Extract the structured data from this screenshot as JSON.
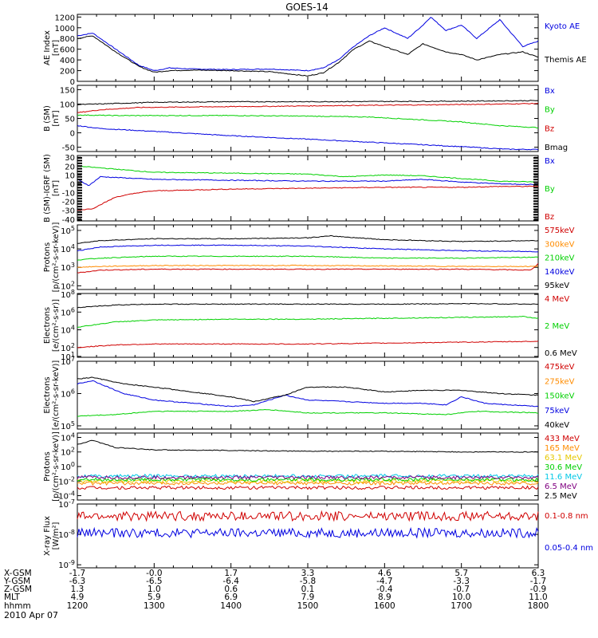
{
  "title": "GOES-14",
  "colors": {
    "black": "#000000",
    "red": "#d00000",
    "green": "#00d000",
    "blue": "#0000e0",
    "orange": "#ff8c00",
    "yellow": "#e6c800",
    "cyan": "#00c8e6",
    "purple": "#800080"
  },
  "footer": {
    "rows": [
      {
        "label": "X-GSM",
        "values": [
          "-1.7",
          "-0.0",
          "1.7",
          "3.3",
          "4.6",
          "5.7",
          "6.3"
        ]
      },
      {
        "label": "Y-GSM",
        "values": [
          "-6.3",
          "-6.5",
          "-6.4",
          "-5.8",
          "-4.7",
          "-3.3",
          "-1.7"
        ]
      },
      {
        "label": "Z-GSM",
        "values": [
          "1.3",
          "1.0",
          "0.6",
          "0.1",
          "-0.4",
          "-0.7",
          "-0.9"
        ]
      },
      {
        "label": "MLT",
        "values": [
          "4.9",
          "5.9",
          "6.9",
          "7.9",
          "8.9",
          "10.0",
          "11.0"
        ]
      },
      {
        "label": "hhmm",
        "values": [
          "1200",
          "1300",
          "1400",
          "1500",
          "1600",
          "1700",
          "1800"
        ]
      }
    ],
    "date": "2010 Apr 07"
  },
  "chart_data": [
    {
      "type": "line",
      "id": "ae",
      "ylabel": "AE Index\n[nT]",
      "yticks": [
        "1200",
        "1000",
        "800",
        "600",
        "400",
        "200",
        "0"
      ],
      "ylim": [
        0,
        1250
      ],
      "x_hours": [
        12.0,
        18.0
      ],
      "series": [
        {
          "name": "Kyoto AE",
          "color": "blue",
          "x": [
            12.0,
            12.2,
            12.5,
            12.8,
            13.0,
            13.2,
            13.5,
            14.0,
            14.5,
            15.0,
            15.2,
            15.4,
            15.6,
            15.8,
            16.0,
            16.3,
            16.5,
            16.6,
            16.8,
            17.0,
            17.2,
            17.5,
            17.8,
            18.0
          ],
          "y": [
            850,
            900,
            600,
            300,
            200,
            250,
            230,
            220,
            230,
            200,
            250,
            400,
            650,
            850,
            1000,
            800,
            1050,
            1200,
            950,
            1050,
            800,
            1150,
            650,
            750
          ]
        },
        {
          "name": "Themis AE",
          "color": "black",
          "x": [
            12.0,
            12.2,
            12.5,
            12.8,
            13.0,
            13.2,
            13.5,
            14.0,
            14.5,
            15.0,
            15.2,
            15.4,
            15.6,
            15.8,
            16.0,
            16.3,
            16.5,
            16.8,
            17.0,
            17.2,
            17.5,
            17.8,
            18.0
          ],
          "y": [
            800,
            850,
            550,
            280,
            170,
            200,
            210,
            200,
            180,
            100,
            160,
            350,
            600,
            750,
            650,
            500,
            700,
            550,
            500,
            400,
            500,
            550,
            450
          ]
        }
      ]
    },
    {
      "type": "line",
      "id": "bsm",
      "ylabel": "B (SM)\n[nT]",
      "yticks": [
        "150",
        "100",
        "50",
        "0",
        "-50"
      ],
      "ylim": [
        -65,
        165
      ],
      "series": [
        {
          "name": "Bx",
          "color": "blue",
          "x": [
            12.0,
            12.3,
            13.0,
            14.0,
            15.0,
            16.0,
            17.0,
            17.6,
            18.0
          ],
          "y": [
            25,
            15,
            5,
            -10,
            -22,
            -35,
            -48,
            -57,
            -58
          ]
        },
        {
          "name": "By",
          "color": "green",
          "x": [
            12.0,
            12.5,
            13.0,
            14.0,
            15.0,
            15.8,
            16.5,
            17.0,
            17.5,
            18.0
          ],
          "y": [
            62,
            60,
            60,
            60,
            58,
            55,
            45,
            38,
            25,
            18
          ]
        },
        {
          "name": "Bz",
          "color": "red",
          "x": [
            12.0,
            12.3,
            12.8,
            13.5,
            14.5,
            15.5,
            16.5,
            17.5,
            18.0
          ],
          "y": [
            70,
            80,
            88,
            90,
            92,
            95,
            97,
            100,
            102
          ]
        },
        {
          "name": "Bmag",
          "color": "black",
          "x": [
            12.0,
            12.5,
            13.0,
            14.0,
            15.0,
            16.0,
            17.0,
            18.0
          ],
          "y": [
            98,
            102,
            106,
            108,
            108,
            109,
            110,
            112
          ]
        }
      ]
    },
    {
      "type": "line",
      "id": "bigrf",
      "ylabel": "B (SM)-IGRF (SM)\n[nT]",
      "yticks": [
        "30",
        "20",
        "10",
        "0",
        "-10",
        "-20",
        "-30",
        "-40"
      ],
      "ylim": [
        -42,
        32
      ],
      "series": [
        {
          "name": "Bx",
          "color": "blue",
          "x": [
            12.0,
            12.15,
            12.3,
            13.0,
            14.0,
            15.0,
            16.0,
            16.5,
            17.0,
            17.5,
            18.0
          ],
          "y": [
            5,
            -2,
            8,
            5,
            4,
            3,
            3,
            5,
            2,
            0,
            -1
          ]
        },
        {
          "name": "By",
          "color": "green",
          "x": [
            12.0,
            12.3,
            13.0,
            14.0,
            15.0,
            15.5,
            16.0,
            16.5,
            17.0,
            17.5,
            18.0
          ],
          "y": [
            20,
            18,
            13,
            12,
            11,
            8,
            10,
            9,
            6,
            3,
            2
          ]
        },
        {
          "name": "Bz",
          "color": "red",
          "x": [
            12.0,
            12.2,
            12.5,
            12.8,
            13.0,
            13.5,
            14.0,
            15.0,
            16.0,
            17.0,
            17.5,
            18.0
          ],
          "y": [
            -30,
            -28,
            -15,
            -10,
            -8,
            -7,
            -6,
            -5,
            -4,
            -4,
            -3,
            -3
          ]
        }
      ]
    },
    {
      "type": "line",
      "id": "protons_low",
      "ylabel": "Protons\n[p/(cm²-s-sr-keV)]",
      "log": true,
      "yticks": [
        "10^5",
        "10^4",
        "10^3",
        "10^2"
      ],
      "ylim_log": [
        1.8,
        5.3
      ],
      "series": [
        {
          "name": "575keV",
          "color": "red",
          "x": [
            12.0,
            12.3,
            13.0,
            15.0,
            17.0,
            17.9,
            18.0
          ],
          "y_log": [
            2.7,
            2.85,
            2.9,
            2.9,
            2.9,
            2.85,
            3.2
          ]
        },
        {
          "name": "300keV",
          "color": "orange",
          "x": [
            12.0,
            12.3,
            13.0,
            15.0,
            17.0,
            18.0
          ],
          "y_log": [
            3.0,
            3.05,
            3.1,
            3.1,
            3.05,
            3.05
          ]
        },
        {
          "name": "210keV",
          "color": "green",
          "x": [
            12.0,
            12.3,
            13.0,
            14.0,
            15.0,
            16.0,
            17.0,
            18.0
          ],
          "y_log": [
            3.4,
            3.5,
            3.6,
            3.6,
            3.6,
            3.5,
            3.5,
            3.55
          ]
        },
        {
          "name": "140keV",
          "color": "blue",
          "x": [
            12.0,
            12.3,
            13.0,
            14.0,
            15.0,
            16.0,
            17.0,
            18.0
          ],
          "y_log": [
            3.9,
            4.1,
            4.2,
            4.2,
            4.15,
            4.0,
            3.9,
            3.85
          ]
        },
        {
          "name": "95keV",
          "color": "black",
          "x": [
            12.0,
            12.3,
            13.0,
            14.0,
            15.0,
            15.3,
            16.0,
            17.0,
            18.0
          ],
          "y_log": [
            4.3,
            4.45,
            4.55,
            4.55,
            4.6,
            4.7,
            4.5,
            4.4,
            4.45
          ]
        }
      ]
    },
    {
      "type": "line",
      "id": "electrons_mev",
      "ylabel": "Electrons\n[e/(cm²-s-sr)]",
      "log": true,
      "yticks": [
        "10^8",
        "10^6",
        "10^4",
        "10^2",
        "10^1"
      ],
      "ylim_log": [
        0.9,
        8.1
      ],
      "series": [
        {
          "name": "4 MeV",
          "color": "red",
          "x": [
            12.0,
            12.5,
            13.0,
            14.0,
            15.0,
            16.0,
            17.0,
            18.0
          ],
          "y_log": [
            2.0,
            2.3,
            2.4,
            2.4,
            2.4,
            2.5,
            2.6,
            2.7
          ]
        },
        {
          "name": "2 MeV",
          "color": "green",
          "x": [
            12.0,
            12.5,
            13.0,
            14.0,
            15.0,
            16.0,
            17.0,
            17.8,
            18.0
          ],
          "y_log": [
            4.3,
            4.9,
            5.1,
            5.2,
            5.2,
            5.3,
            5.4,
            5.5,
            5.3
          ]
        },
        {
          "name": "0.6 MeV",
          "color": "black",
          "x": [
            12.0,
            12.5,
            13.0,
            14.0,
            15.0,
            16.0,
            17.0,
            18.0
          ],
          "y_log": [
            6.5,
            6.8,
            6.9,
            6.9,
            6.9,
            6.9,
            6.95,
            6.9
          ]
        }
      ]
    },
    {
      "type": "line",
      "id": "electrons_kev",
      "ylabel": "Electrons\n[e/(cm²-s-sr-keV)]",
      "log": true,
      "yticks": [
        "10^7",
        "10^6",
        "10^5"
      ],
      "ylim_log": [
        4.9,
        7.0
      ],
      "series": [
        {
          "name": "475keV",
          "color": "red",
          "x": [],
          "y_log": []
        },
        {
          "name": "275keV",
          "color": "orange",
          "x": [],
          "y_log": []
        },
        {
          "name": "150keV",
          "color": "green",
          "x": [
            12.0,
            12.5,
            13.0,
            14.0,
            14.5,
            15.0,
            16.0,
            16.8,
            17.2,
            18.0
          ],
          "y_log": [
            5.3,
            5.35,
            5.45,
            5.45,
            5.5,
            5.4,
            5.4,
            5.35,
            5.45,
            5.4
          ]
        },
        {
          "name": "75keV",
          "color": "blue",
          "x": [
            12.0,
            12.2,
            12.6,
            13.0,
            13.5,
            14.0,
            14.3,
            14.7,
            15.0,
            15.5,
            16.0,
            16.5,
            16.8,
            17.0,
            17.3,
            17.6,
            18.0
          ],
          "y_log": [
            6.3,
            6.4,
            6.0,
            5.8,
            5.7,
            5.6,
            5.65,
            5.95,
            5.8,
            5.75,
            5.7,
            5.7,
            5.65,
            5.9,
            5.7,
            5.65,
            5.6
          ]
        },
        {
          "name": "40keV",
          "color": "black",
          "x": [
            12.0,
            12.2,
            12.6,
            13.0,
            13.5,
            14.0,
            14.3,
            14.7,
            15.0,
            15.5,
            16.0,
            16.5,
            17.0,
            17.5,
            18.0
          ],
          "y_log": [
            6.45,
            6.5,
            6.3,
            6.2,
            6.05,
            5.9,
            5.75,
            5.95,
            6.2,
            6.2,
            6.05,
            6.1,
            6.1,
            6.0,
            5.95
          ]
        }
      ]
    },
    {
      "type": "line",
      "id": "protons_high",
      "ylabel": "Protons\n[p/(cm²-s-sr-keV)]",
      "log": true,
      "yticks": [
        "10^4",
        "10^2",
        "10^0",
        "10^-2",
        "10^-4"
      ],
      "ylim_log": [
        -4.6,
        4.6
      ],
      "series": [
        {
          "name": "433 MeV",
          "color": "red",
          "level": -2.9
        },
        {
          "name": "165 MeV",
          "color": "orange",
          "level": -2.3
        },
        {
          "name": "63.1 MeV",
          "color": "yellow",
          "level": -2.0
        },
        {
          "name": "30.6 MeV",
          "color": "green",
          "level": -1.8
        },
        {
          "name": "11.6 MeV",
          "color": "cyan",
          "level": -1.3
        },
        {
          "name": "6.5 MeV",
          "color": "purple",
          "level": -1.5
        },
        {
          "name": "2.5 MeV",
          "color": "black",
          "x": [
            12.0,
            12.2,
            12.5,
            13.0,
            14.0,
            15.0,
            16.0,
            17.0,
            18.0
          ],
          "y_log": [
            3.0,
            3.6,
            2.6,
            2.3,
            2.2,
            2.1,
            2.1,
            2.0,
            2.0
          ]
        }
      ]
    },
    {
      "type": "line",
      "id": "xray",
      "ylabel": "X-ray Flux\n[W/m²]",
      "log": true,
      "yticks": [
        "10^-7",
        "10^-8",
        "10^-9"
      ],
      "ylim_log": [
        -9.1,
        -7.0
      ],
      "series": [
        {
          "name": "0.1-0.8 nm",
          "color": "red",
          "level": -7.4
        },
        {
          "name": "0.05-0.4 nm",
          "color": "blue",
          "level": -7.95
        }
      ]
    }
  ]
}
